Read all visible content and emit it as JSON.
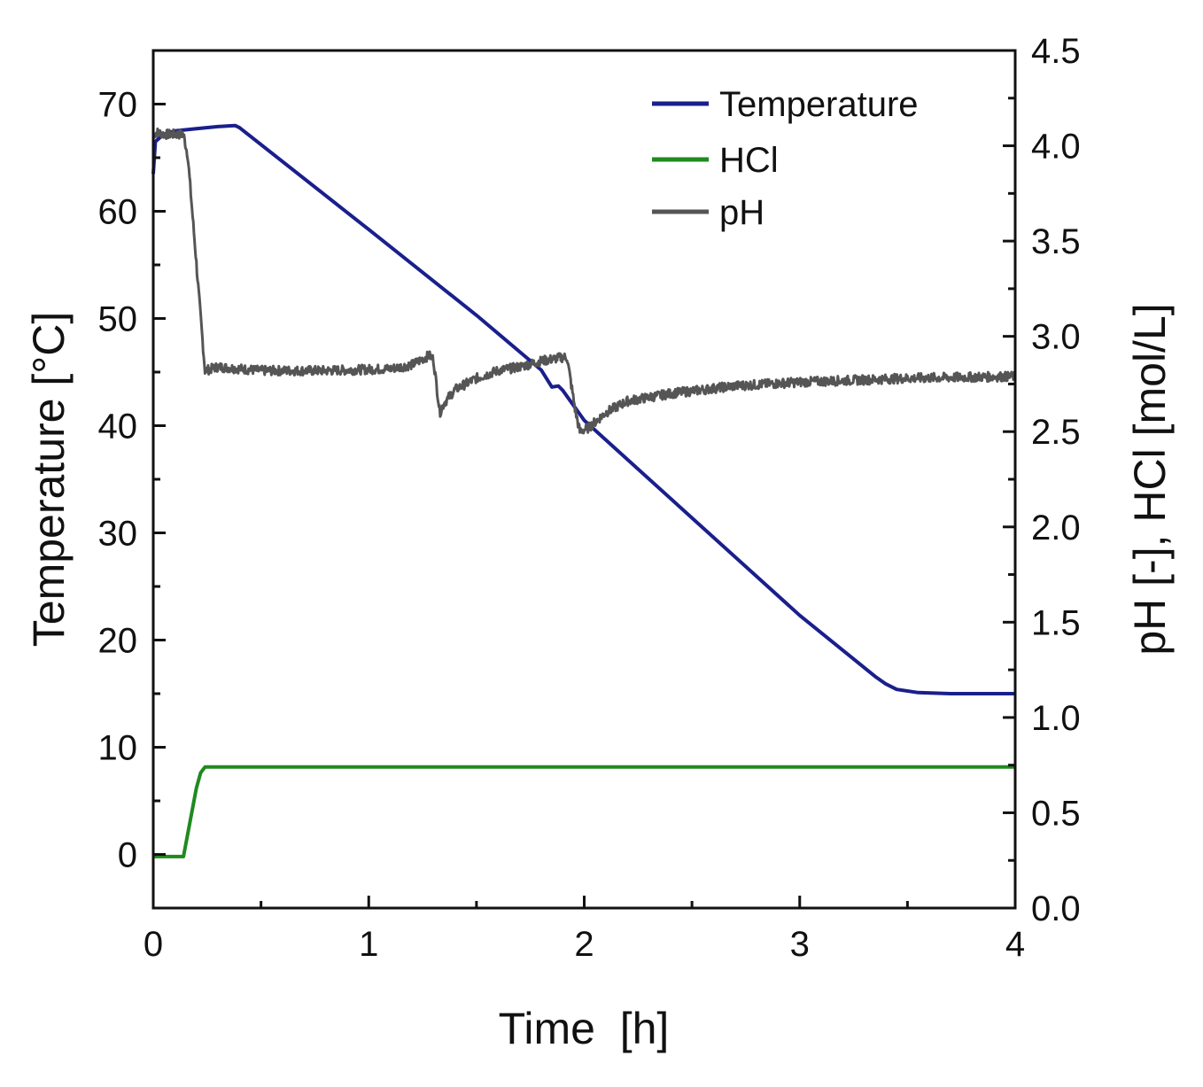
{
  "chart_data": {
    "type": "line",
    "title": "",
    "xlabel": "Time  [h]",
    "ylabel_left": "Temperature [°C]",
    "ylabel_right": "pH [-], HCl [mol/L]",
    "xlim": [
      0,
      4
    ],
    "ylim_left": [
      -5,
      75
    ],
    "ylim_right": [
      0,
      4.5
    ],
    "x_ticks": [
      0,
      1,
      2,
      3,
      4
    ],
    "x_tick_labels": [
      "0",
      "1",
      "2",
      "3",
      "4"
    ],
    "y_left_ticks": [
      0,
      10,
      20,
      30,
      40,
      50,
      60,
      70
    ],
    "y_left_tick_labels": [
      "0",
      "10",
      "20",
      "30",
      "40",
      "50",
      "60",
      "70"
    ],
    "y_right_ticks": [
      0,
      0.5,
      1.0,
      1.5,
      2.0,
      2.5,
      3.0,
      3.5,
      4.0,
      4.5
    ],
    "y_right_tick_labels": [
      "0.0",
      "0.5",
      "1.0",
      "1.5",
      "2.0",
      "2.5",
      "3.0",
      "3.5",
      "4.0",
      "4.5"
    ],
    "grid": false,
    "legend_position": "top-right",
    "series": [
      {
        "name": "Temperature",
        "axis": "left",
        "color": "#1a1f8c",
        "noise": 0,
        "x": [
          0,
          0.01,
          0.05,
          0.1,
          0.2,
          0.3,
          0.38,
          0.4,
          1.0,
          1.5,
          1.8,
          1.85,
          1.88,
          1.9,
          2.0,
          2.5,
          3.0,
          3.35,
          3.4,
          3.45,
          3.55,
          3.7,
          4.0
        ],
        "y": [
          63.5,
          66.5,
          67.2,
          67.5,
          67.7,
          67.9,
          68.0,
          67.8,
          58.3,
          50.3,
          45.2,
          43.6,
          43.7,
          43.3,
          40.5,
          31.4,
          22.3,
          16.6,
          15.9,
          15.4,
          15.1,
          15.0,
          15.0
        ]
      },
      {
        "name": "HCl",
        "axis": "right",
        "color": "#1f8a1f",
        "noise": 0,
        "x": [
          0,
          0.14,
          0.2,
          0.22,
          0.24,
          0.25,
          4.0
        ],
        "y": [
          0.27,
          0.27,
          0.63,
          0.71,
          0.74,
          0.74,
          0.74
        ]
      },
      {
        "name": "pH",
        "axis": "right",
        "color": "#555555",
        "noise": 0.025,
        "x": [
          0,
          0.02,
          0.05,
          0.1,
          0.14,
          0.16,
          0.24,
          0.3,
          0.5,
          0.8,
          1.1,
          1.2,
          1.28,
          1.3,
          1.33,
          1.35,
          1.4,
          1.5,
          1.6,
          1.7,
          1.8,
          1.9,
          1.92,
          1.96,
          1.98,
          2.02,
          2.1,
          2.2,
          2.4,
          2.7,
          3.0,
          3.5,
          4.0
        ],
        "y": [
          4.06,
          4.07,
          4.06,
          4.06,
          4.06,
          3.95,
          2.82,
          2.84,
          2.82,
          2.82,
          2.83,
          2.85,
          2.9,
          2.88,
          2.6,
          2.65,
          2.72,
          2.78,
          2.82,
          2.84,
          2.87,
          2.89,
          2.89,
          2.6,
          2.5,
          2.52,
          2.6,
          2.66,
          2.7,
          2.74,
          2.76,
          2.78,
          2.79
        ]
      }
    ]
  }
}
